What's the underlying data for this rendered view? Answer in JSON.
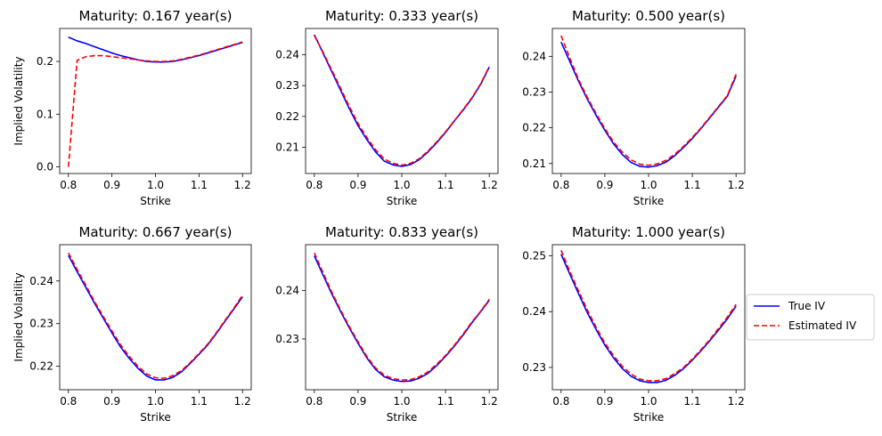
{
  "chart_data": [
    {
      "type": "line",
      "title": "Maturity: 0.167 year(s)",
      "xlabel": "Strike",
      "ylabel": "Implied Volatility",
      "xlim": [
        0.78,
        1.22
      ],
      "ylim": [
        -0.0125,
        0.2625
      ],
      "xticks": [
        0.8,
        0.9,
        1.0,
        1.1,
        1.2
      ],
      "xtick_labels": [
        "0.8",
        "0.9",
        "1.0",
        "1.1",
        "1.2"
      ],
      "yticks": [
        0.0,
        0.1,
        0.2
      ],
      "ytick_labels": [
        "0.0",
        "0.1",
        "0.2"
      ],
      "x": [
        0.8,
        0.82,
        0.84,
        0.86,
        0.88,
        0.9,
        0.92,
        0.94,
        0.96,
        0.98,
        1.0,
        1.02,
        1.04,
        1.06,
        1.08,
        1.1,
        1.12,
        1.14,
        1.16,
        1.18,
        1.2
      ],
      "series": [
        {
          "name": "True IV",
          "values": [
            0.246,
            0.239,
            0.234,
            0.228,
            0.222,
            0.216,
            0.211,
            0.207,
            0.203,
            0.2,
            0.199,
            0.199,
            0.2,
            0.203,
            0.207,
            0.211,
            0.216,
            0.221,
            0.226,
            0.231,
            0.236
          ]
        },
        {
          "name": "Estimated IV",
          "values": [
            0.0,
            0.202,
            0.209,
            0.211,
            0.211,
            0.209,
            0.207,
            0.205,
            0.203,
            0.201,
            0.2,
            0.2,
            0.201,
            0.204,
            0.208,
            0.212,
            0.217,
            0.222,
            0.227,
            0.232,
            0.237
          ]
        }
      ]
    },
    {
      "type": "line",
      "title": "Maturity: 0.333 year(s)",
      "xlabel": "Strike",
      "ylabel": "",
      "xlim": [
        0.78,
        1.22
      ],
      "ylim": [
        0.2015,
        0.2485
      ],
      "xticks": [
        0.8,
        0.9,
        1.0,
        1.1,
        1.2
      ],
      "xtick_labels": [
        "0.8",
        "0.9",
        "1.0",
        "1.1",
        "1.2"
      ],
      "yticks": [
        0.21,
        0.22,
        0.23,
        0.24
      ],
      "ytick_labels": [
        "0.21",
        "0.22",
        "0.23",
        "0.24"
      ],
      "x": [
        0.8,
        0.82,
        0.84,
        0.86,
        0.88,
        0.9,
        0.92,
        0.94,
        0.96,
        0.98,
        1.0,
        1.02,
        1.04,
        1.06,
        1.08,
        1.1,
        1.12,
        1.14,
        1.16,
        1.18,
        1.2
      ],
      "series": [
        {
          "name": "True IV",
          "values": [
            0.2465,
            0.2405,
            0.2345,
            0.2285,
            0.2225,
            0.217,
            0.2125,
            0.2085,
            0.2055,
            0.2043,
            0.2038,
            0.2044,
            0.206,
            0.2085,
            0.2115,
            0.2148,
            0.2185,
            0.222,
            0.2258,
            0.2303,
            0.236
          ]
        },
        {
          "name": "Estimated IV",
          "values": [
            0.2462,
            0.2408,
            0.235,
            0.2292,
            0.2232,
            0.2177,
            0.2132,
            0.2092,
            0.2062,
            0.2048,
            0.2042,
            0.2048,
            0.2063,
            0.2088,
            0.2118,
            0.215,
            0.2186,
            0.2222,
            0.226,
            0.2305,
            0.2362
          ]
        }
      ]
    },
    {
      "type": "line",
      "title": "Maturity: 0.500 year(s)",
      "xlabel": "Strike",
      "ylabel": "",
      "xlim": [
        0.78,
        1.22
      ],
      "ylim": [
        0.2072,
        0.2478
      ],
      "xticks": [
        0.8,
        0.9,
        1.0,
        1.1,
        1.2
      ],
      "xtick_labels": [
        "0.8",
        "0.9",
        "1.0",
        "1.1",
        "1.2"
      ],
      "yticks": [
        0.21,
        0.22,
        0.23,
        0.24
      ],
      "ytick_labels": [
        "0.21",
        "0.22",
        "0.23",
        "0.24"
      ],
      "x": [
        0.8,
        0.82,
        0.84,
        0.86,
        0.88,
        0.9,
        0.92,
        0.94,
        0.96,
        0.98,
        1.0,
        1.02,
        1.04,
        1.06,
        1.08,
        1.1,
        1.12,
        1.14,
        1.16,
        1.18,
        1.2
      ],
      "series": [
        {
          "name": "True IV",
          "values": [
            0.244,
            0.2385,
            0.233,
            0.228,
            0.2235,
            0.2193,
            0.2155,
            0.2125,
            0.2103,
            0.2092,
            0.209,
            0.2094,
            0.2104,
            0.2122,
            0.2145,
            0.217,
            0.2198,
            0.2228,
            0.2258,
            0.2288,
            0.2345
          ]
        },
        {
          "name": "Estimated IV",
          "values": [
            0.2458,
            0.2395,
            0.2335,
            0.2285,
            0.224,
            0.2198,
            0.216,
            0.2132,
            0.211,
            0.2098,
            0.2095,
            0.2099,
            0.2109,
            0.2126,
            0.2148,
            0.2173,
            0.22,
            0.223,
            0.226,
            0.229,
            0.235
          ]
        }
      ]
    },
    {
      "type": "line",
      "title": "Maturity: 0.667 year(s)",
      "xlabel": "Strike",
      "ylabel": "Implied Volatility",
      "xlim": [
        0.78,
        1.22
      ],
      "ylim": [
        0.2145,
        0.2485
      ],
      "xticks": [
        0.8,
        0.9,
        1.0,
        1.1,
        1.2
      ],
      "xtick_labels": [
        "0.8",
        "0.9",
        "1.0",
        "1.1",
        "1.2"
      ],
      "yticks": [
        0.22,
        0.23,
        0.24
      ],
      "ytick_labels": [
        "0.22",
        "0.23",
        "0.24"
      ],
      "x": [
        0.8,
        0.82,
        0.84,
        0.86,
        0.88,
        0.9,
        0.92,
        0.94,
        0.96,
        0.98,
        1.0,
        1.02,
        1.04,
        1.06,
        1.08,
        1.1,
        1.12,
        1.14,
        1.16,
        1.18,
        1.2
      ],
      "series": [
        {
          "name": "True IV",
          "values": [
            0.246,
            0.2422,
            0.2385,
            0.2348,
            0.2313,
            0.2278,
            0.2245,
            0.2218,
            0.2195,
            0.2177,
            0.2168,
            0.2168,
            0.2174,
            0.2187,
            0.2207,
            0.2228,
            0.225,
            0.2277,
            0.2306,
            0.2334,
            0.2363
          ]
        },
        {
          "name": "Estimated IV",
          "values": [
            0.2466,
            0.2427,
            0.239,
            0.2352,
            0.2317,
            0.2283,
            0.225,
            0.2223,
            0.22,
            0.2182,
            0.2173,
            0.2172,
            0.2178,
            0.219,
            0.2209,
            0.223,
            0.2252,
            0.2279,
            0.2308,
            0.2336,
            0.2367
          ]
        }
      ]
    },
    {
      "type": "line",
      "title": "Maturity: 0.833 year(s)",
      "xlabel": "Strike",
      "ylabel": "",
      "xlim": [
        0.78,
        1.22
      ],
      "ylim": [
        0.2195,
        0.2495
      ],
      "xticks": [
        0.8,
        0.9,
        1.0,
        1.1,
        1.2
      ],
      "xtick_labels": [
        "0.8",
        "0.9",
        "1.0",
        "1.1",
        "1.2"
      ],
      "yticks": [
        0.23,
        0.24
      ],
      "ytick_labels": [
        "0.23",
        "0.24"
      ],
      "x": [
        0.8,
        0.82,
        0.84,
        0.86,
        0.88,
        0.9,
        0.92,
        0.94,
        0.96,
        0.98,
        1.0,
        1.02,
        1.04,
        1.06,
        1.08,
        1.1,
        1.12,
        1.14,
        1.16,
        1.18,
        1.2
      ],
      "series": [
        {
          "name": "True IV",
          "values": [
            0.2472,
            0.2432,
            0.2393,
            0.2357,
            0.2323,
            0.2291,
            0.2261,
            0.2237,
            0.2222,
            0.2215,
            0.2212,
            0.2213,
            0.2219,
            0.2229,
            0.2245,
            0.2264,
            0.2285,
            0.2308,
            0.2333,
            0.2356,
            0.238
          ]
        },
        {
          "name": "Estimated IV",
          "values": [
            0.2478,
            0.2437,
            0.2397,
            0.236,
            0.2326,
            0.2294,
            0.2264,
            0.224,
            0.2225,
            0.2218,
            0.2215,
            0.2216,
            0.2222,
            0.2232,
            0.2248,
            0.2266,
            0.2287,
            0.231,
            0.2335,
            0.2357,
            0.2382
          ]
        }
      ]
    },
    {
      "type": "line",
      "title": "Maturity: 1.000 year(s)",
      "xlabel": "Strike",
      "ylabel": "",
      "xlim": [
        0.78,
        1.22
      ],
      "ylim": [
        0.226,
        0.252
      ],
      "xticks": [
        0.8,
        0.9,
        1.0,
        1.1,
        1.2
      ],
      "xtick_labels": [
        "0.8",
        "0.9",
        "1.0",
        "1.1",
        "1.2"
      ],
      "yticks": [
        0.23,
        0.24,
        0.25
      ],
      "ytick_labels": [
        "0.23",
        "0.24",
        "0.25"
      ],
      "x": [
        0.8,
        0.82,
        0.84,
        0.86,
        0.88,
        0.9,
        0.92,
        0.94,
        0.96,
        0.98,
        1.0,
        1.02,
        1.04,
        1.06,
        1.08,
        1.1,
        1.12,
        1.14,
        1.16,
        1.18,
        1.2
      ],
      "series": [
        {
          "name": "True IV",
          "values": [
            0.2503,
            0.2467,
            0.2432,
            0.2398,
            0.2368,
            0.234,
            0.2317,
            0.2298,
            0.2284,
            0.2276,
            0.2273,
            0.2273,
            0.2277,
            0.2286,
            0.2298,
            0.2313,
            0.233,
            0.2348,
            0.2367,
            0.2387,
            0.241
          ]
        },
        {
          "name": "Estimated IV",
          "values": [
            0.251,
            0.2472,
            0.2437,
            0.2403,
            0.2372,
            0.2344,
            0.2321,
            0.2302,
            0.2288,
            0.2279,
            0.2276,
            0.2276,
            0.228,
            0.2289,
            0.23,
            0.2315,
            0.2332,
            0.235,
            0.237,
            0.239,
            0.2413
          ]
        }
      ]
    }
  ],
  "legend": {
    "items": [
      {
        "label": "True IV",
        "color": "#0000ff",
        "style": "solid"
      },
      {
        "label": "Estimated IV",
        "color": "#ff0000",
        "style": "dashed"
      }
    ],
    "placement": "right"
  }
}
